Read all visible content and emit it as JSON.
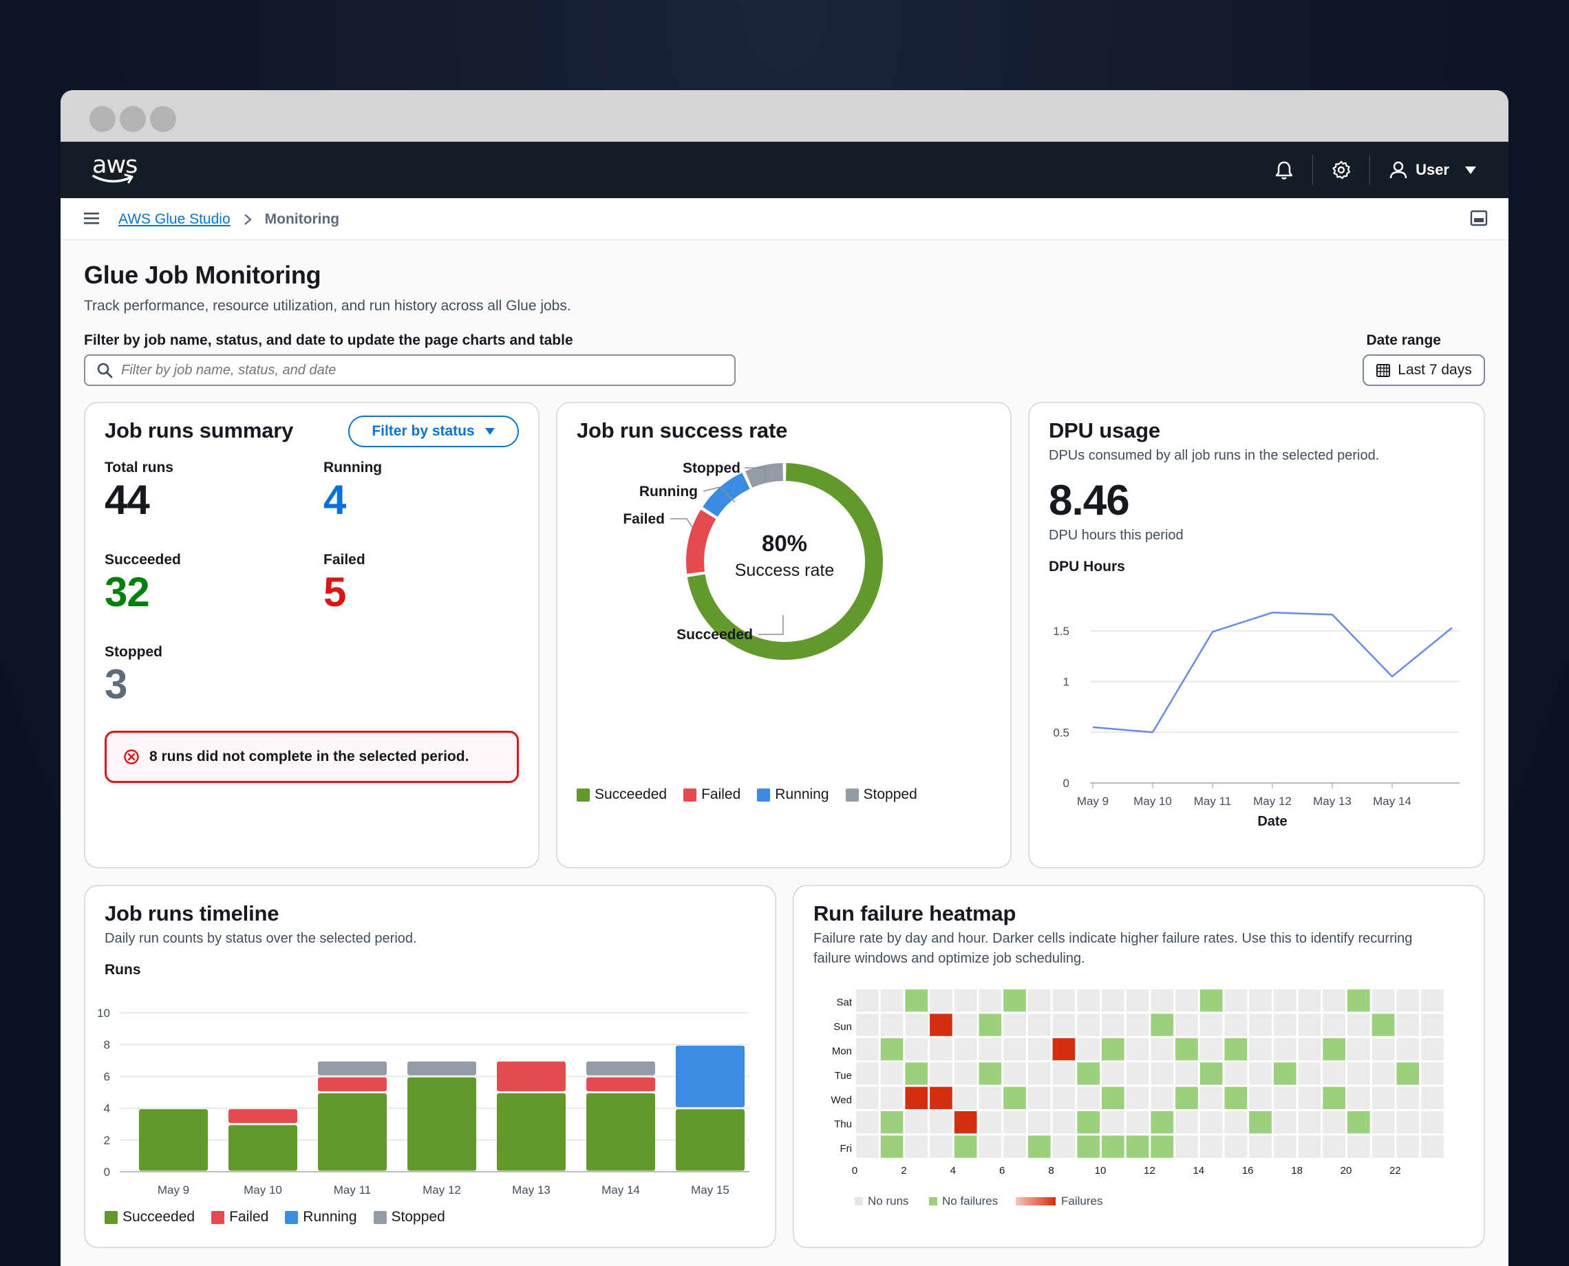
{
  "nav": {
    "user_label": "User"
  },
  "breadcrumb": {
    "root": "AWS Glue Studio",
    "current": "Monitoring"
  },
  "page": {
    "title": "Glue Job Monitoring",
    "description": "Track performance, resource utilization, and run history across all Glue jobs.",
    "filter_label": "Filter by job name, status, and date to update the page charts and table",
    "filter_placeholder": "Filter by job name, status, and date",
    "date_range_label": "Date range",
    "date_range_value": "Last 7 days"
  },
  "colors": {
    "succeeded": "#62992a",
    "failed": "#e44b4e",
    "running": "#3a8ce0",
    "stopped": "#949ba6",
    "accent": "#0972d3"
  },
  "summary": {
    "title": "Job runs summary",
    "filter_button": "Filter by status",
    "total_label": "Total runs",
    "total_value": "44",
    "running_label": "Running",
    "running_value": "4",
    "succeeded_label": "Succeeded",
    "succeeded_value": "32",
    "failed_label": "Failed",
    "failed_value": "5",
    "stopped_label": "Stopped",
    "stopped_value": "3",
    "alert_text": "8 runs did not complete in the selected period."
  },
  "success_rate": {
    "title": "Job run success rate",
    "center_value": "80%",
    "center_label": "Success rate",
    "labels": {
      "stopped": "Stopped",
      "running": "Running",
      "failed": "Failed",
      "succeeded": "Succeeded"
    },
    "legend": [
      "Succeeded",
      "Failed",
      "Running",
      "Stopped"
    ]
  },
  "dpu": {
    "title": "DPU usage",
    "subtitle": "DPUs consumed by all job runs in the selected period.",
    "value": "8.46",
    "value_label": "DPU hours this period",
    "chart_title": "DPU Hours"
  },
  "timeline": {
    "title": "Job runs timeline",
    "subtitle": "Daily run counts by status over the selected period.",
    "ylabel": "Runs",
    "legend": [
      "Succeeded",
      "Failed",
      "Running",
      "Stopped"
    ]
  },
  "heatmap": {
    "title": "Run failure heatmap",
    "subtitle_line1": "Failure rate by day and hour. Darker cells indicate higher failure rates. Use this to identify recurring",
    "subtitle_line2": "failure windows and optimize job scheduling.",
    "legend": [
      "No runs",
      "No failures",
      "Failures"
    ]
  },
  "chart_data": [
    {
      "type": "pie",
      "title": "Job run success rate",
      "categories": [
        "Succeeded",
        "Failed",
        "Running",
        "Stopped"
      ],
      "values": [
        32,
        5,
        4,
        3
      ]
    },
    {
      "type": "line",
      "title": "DPU Hours",
      "xlabel": "Date",
      "x": [
        "May 9",
        "May 10",
        "May 11",
        "May 12",
        "May 13",
        "May 14",
        "May 15"
      ],
      "values": [
        0.55,
        0.5,
        1.49,
        1.68,
        1.66,
        1.05,
        1.53
      ],
      "ylim": [
        0,
        1.75
      ],
      "yticks": [
        "0",
        "0.5",
        "1",
        "1.5"
      ],
      "xticks": [
        "May 9",
        "May 10",
        "May 11",
        "May 12",
        "May 13",
        "May 14"
      ],
      "grid": true
    },
    {
      "type": "bar",
      "title": "Job runs timeline",
      "ylabel": "Runs",
      "categories": [
        "May 9",
        "May 10",
        "May 11",
        "May 12",
        "May 13",
        "May 14",
        "May 15"
      ],
      "series": [
        {
          "name": "Succeeded",
          "values": [
            4,
            3,
            5,
            6,
            5,
            5,
            4
          ]
        },
        {
          "name": "Failed",
          "values": [
            0,
            1,
            1,
            0,
            2,
            1,
            0
          ]
        },
        {
          "name": "Running",
          "values": [
            0,
            0,
            0,
            0,
            0,
            0,
            4
          ]
        },
        {
          "name": "Stopped",
          "values": [
            0,
            0,
            1,
            1,
            0,
            1,
            0
          ]
        }
      ],
      "ylim": [
        0,
        10
      ],
      "yticks": [
        "0",
        "2",
        "4",
        "6",
        "8",
        "10"
      ],
      "stacked": true
    },
    {
      "type": "heatmap",
      "title": "Run failure heatmap",
      "rows": [
        "Sat",
        "Sun",
        "Mon",
        "Tue",
        "Wed",
        "Thu",
        "Fri"
      ],
      "columns": [
        0,
        1,
        2,
        3,
        4,
        5,
        6,
        7,
        8,
        9,
        10,
        11,
        12,
        13,
        14,
        15,
        16,
        17,
        18,
        19,
        20,
        21,
        22,
        23
      ],
      "xticks": [
        "0",
        "2",
        "4",
        "6",
        "8",
        "10",
        "12",
        "14",
        "16",
        "18",
        "20",
        "22"
      ],
      "legend_values": {
        "no_runs": -1,
        "no_failures": 0,
        "failures": "1-3"
      },
      "values": [
        [
          -1,
          -1,
          0,
          -1,
          -1,
          -1,
          0,
          -1,
          -1,
          -1,
          -1,
          -1,
          -1,
          -1,
          0,
          -1,
          -1,
          -1,
          -1,
          -1,
          0,
          -1,
          -1,
          -1
        ],
        [
          -1,
          -1,
          -1,
          3,
          -1,
          0,
          -1,
          -1,
          -1,
          -1,
          -1,
          -1,
          0,
          -1,
          -1,
          -1,
          -1,
          -1,
          -1,
          -1,
          -1,
          0,
          -1,
          -1
        ],
        [
          -1,
          0,
          -1,
          -1,
          -1,
          -1,
          -1,
          -1,
          3,
          -1,
          0,
          -1,
          -1,
          0,
          -1,
          0,
          -1,
          -1,
          -1,
          0,
          -1,
          -1,
          -1,
          -1
        ],
        [
          -1,
          -1,
          0,
          -1,
          -1,
          0,
          -1,
          -1,
          -1,
          0,
          -1,
          -1,
          -1,
          -1,
          0,
          -1,
          -1,
          0,
          -1,
          -1,
          -1,
          -1,
          0,
          -1
        ],
        [
          -1,
          -1,
          3,
          3,
          -1,
          -1,
          0,
          -1,
          -1,
          -1,
          0,
          -1,
          -1,
          0,
          -1,
          0,
          -1,
          -1,
          -1,
          0,
          -1,
          -1,
          -1,
          -1
        ],
        [
          -1,
          0,
          -1,
          -1,
          3,
          -1,
          -1,
          -1,
          -1,
          0,
          -1,
          -1,
          0,
          -1,
          -1,
          -1,
          0,
          -1,
          -1,
          -1,
          0,
          -1,
          -1,
          -1
        ],
        [
          -1,
          0,
          -1,
          -1,
          0,
          -1,
          -1,
          0,
          -1,
          0,
          0,
          0,
          0,
          -1,
          -1,
          -1,
          -1,
          -1,
          -1,
          -1,
          -1,
          -1,
          -1,
          -1
        ]
      ]
    }
  ]
}
